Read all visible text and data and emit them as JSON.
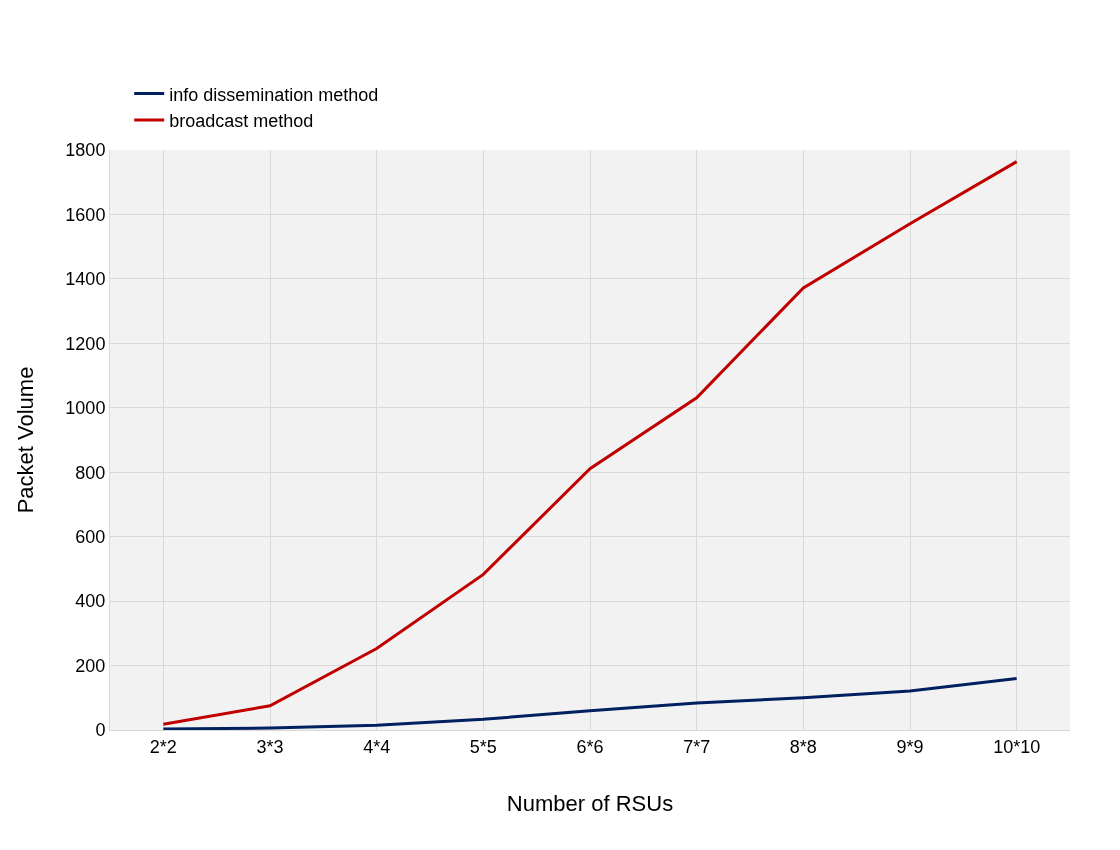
{
  "chart_data": {
    "type": "line",
    "xlabel": "Number of RSUs",
    "ylabel": "Packet Volume",
    "categories": [
      "2*2",
      "3*3",
      "4*4",
      "5*5",
      "6*6",
      "7*7",
      "8*8",
      "9*9",
      "10*10"
    ],
    "series": [
      {
        "name": "info dissemination method",
        "color": "#002060",
        "values": [
          3,
          6,
          15,
          33,
          60,
          84,
          100,
          121,
          160
        ]
      },
      {
        "name": "broadcast method",
        "color": "#c00000",
        "values": [
          18,
          75,
          253,
          483,
          811,
          1031,
          1372,
          1571,
          1764
        ]
      }
    ],
    "ylim": [
      0,
      1800
    ],
    "yticks": [
      0,
      200,
      400,
      600,
      800,
      1000,
      1200,
      1400,
      1600,
      1800
    ],
    "grid": true,
    "legend": "top left",
    "marker": "none",
    "line_style": "solid"
  }
}
